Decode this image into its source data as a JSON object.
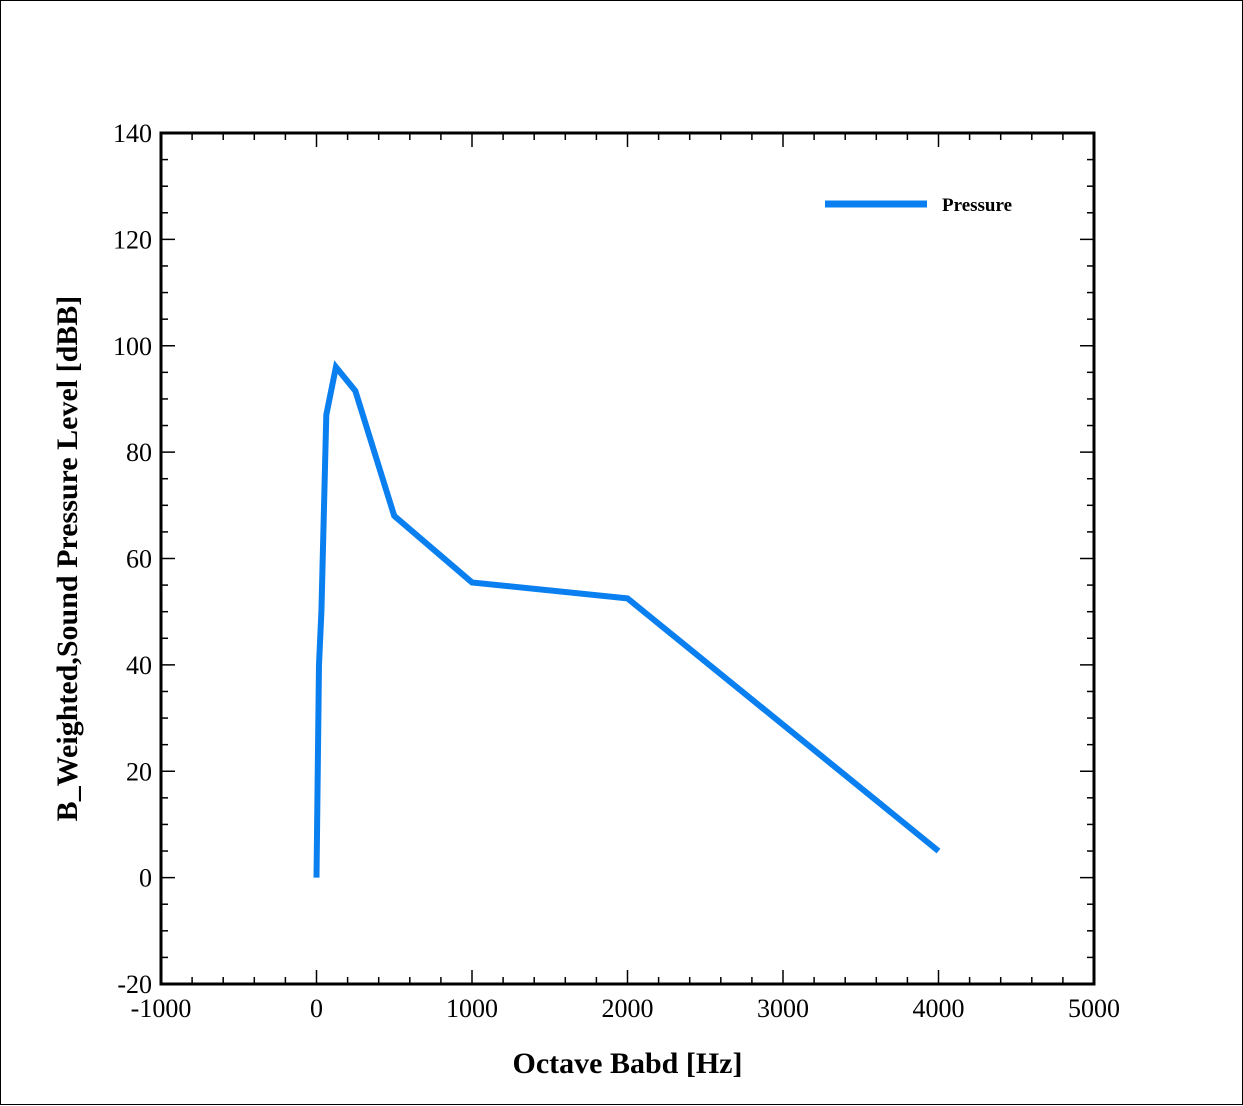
{
  "chart_data": {
    "type": "line",
    "title": "",
    "xlabel": "Octave Babd [Hz]",
    "ylabel": "B_Weighted,Sound Pressure Level [dBB]",
    "xlim": [
      -1000,
      5000
    ],
    "ylim": [
      -20,
      140
    ],
    "x_ticks": [
      -1000,
      0,
      1000,
      2000,
      3000,
      4000,
      5000
    ],
    "y_ticks": [
      -20,
      0,
      20,
      40,
      60,
      80,
      100,
      120,
      140
    ],
    "x_tick_labels": [
      "-1000",
      "0",
      "1000",
      "2000",
      "3000",
      "4000",
      "5000"
    ],
    "y_tick_labels": [
      "-20",
      "0",
      "20",
      "40",
      "60",
      "80",
      "100",
      "120",
      "140"
    ],
    "grid": false,
    "legend_position": "top-right",
    "series": [
      {
        "name": "Pressure",
        "color": "#0a7ff0",
        "x": [
          0,
          16,
          31.5,
          63,
          125,
          250,
          500,
          1000,
          2000,
          4000
        ],
        "y": [
          0,
          40,
          50,
          87,
          96,
          91.5,
          68,
          55.5,
          52.5,
          5
        ]
      }
    ]
  }
}
